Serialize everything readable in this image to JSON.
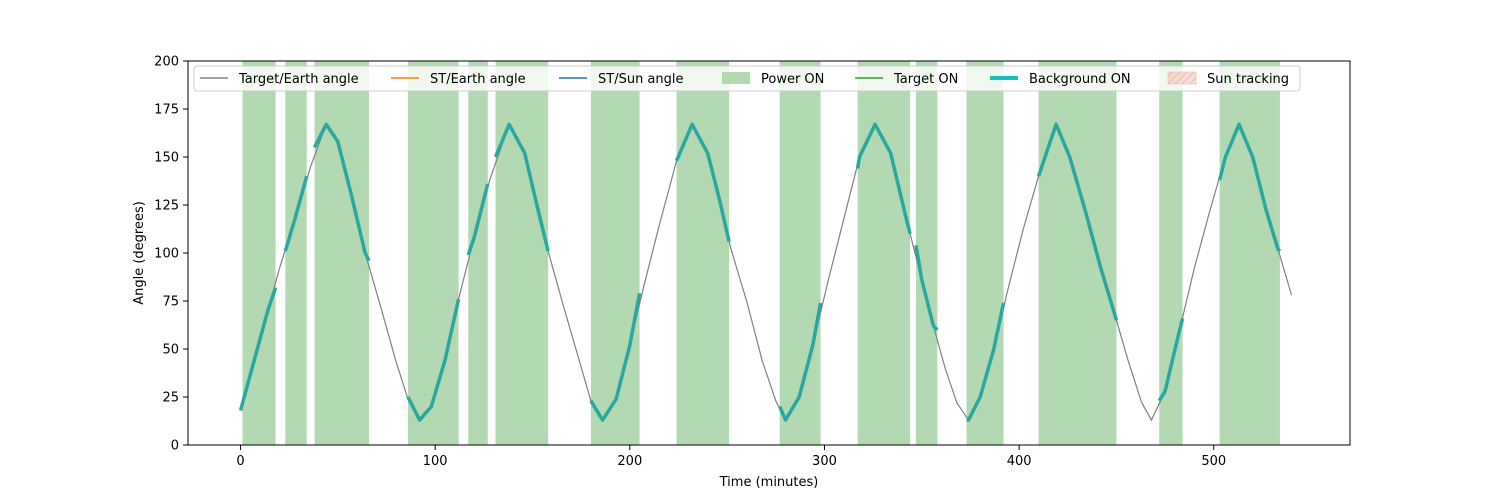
{
  "chart_data": {
    "type": "line",
    "xlabel": "Time (minutes)",
    "ylabel": "Angle (degrees)",
    "xlim": [
      -27,
      570
    ],
    "ylim": [
      0,
      200
    ],
    "xticks": [
      0,
      100,
      200,
      300,
      400,
      500
    ],
    "yticks": [
      0,
      25,
      50,
      75,
      100,
      125,
      150,
      175,
      200
    ],
    "grid": false,
    "legend_position": "top, single row",
    "legend": [
      {
        "label": "Target/Earth angle",
        "kind": "line",
        "color": "#808080"
      },
      {
        "label": "ST/Earth angle",
        "kind": "line",
        "color": "#ff7f0e"
      },
      {
        "label": "ST/Sun angle",
        "kind": "line",
        "color": "#1f77b4"
      },
      {
        "label": "Power ON",
        "kind": "patch",
        "color": "#b3d9b3"
      },
      {
        "label": "Target ON",
        "kind": "line",
        "color": "#2ca02c"
      },
      {
        "label": "Background ON",
        "kind": "thick-line",
        "color": "#17bebb"
      },
      {
        "label": "Sun tracking",
        "kind": "hatched-patch",
        "color": "#f4c2b8"
      }
    ],
    "target_earth_angle": {
      "color": "#808080",
      "points": [
        [
          0,
          18
        ],
        [
          7,
          44
        ],
        [
          14,
          70
        ],
        [
          20,
          92
        ],
        [
          28,
          118
        ],
        [
          36,
          145
        ],
        [
          44,
          167
        ],
        [
          50,
          158
        ],
        [
          57,
          130
        ],
        [
          64,
          100
        ],
        [
          72,
          72
        ],
        [
          80,
          43
        ],
        [
          86,
          24
        ],
        [
          92,
          13
        ],
        [
          98,
          20
        ],
        [
          105,
          44
        ],
        [
          112,
          76
        ],
        [
          120,
          108
        ],
        [
          128,
          138
        ],
        [
          138,
          167
        ],
        [
          146,
          152
        ],
        [
          152,
          126
        ],
        [
          158,
          101
        ],
        [
          166,
          72
        ],
        [
          174,
          44
        ],
        [
          180,
          23
        ],
        [
          186,
          13
        ],
        [
          193,
          24
        ],
        [
          200,
          52
        ],
        [
          207,
          82
        ],
        [
          215,
          114
        ],
        [
          224,
          148
        ],
        [
          232,
          167
        ],
        [
          240,
          152
        ],
        [
          246,
          128
        ],
        [
          252,
          102
        ],
        [
          260,
          75
        ],
        [
          268,
          44
        ],
        [
          275,
          23
        ],
        [
          280,
          13
        ],
        [
          287,
          25
        ],
        [
          294,
          52
        ],
        [
          302,
          86
        ],
        [
          310,
          118
        ],
        [
          318,
          150
        ],
        [
          326,
          167
        ],
        [
          334,
          152
        ],
        [
          342,
          118
        ],
        [
          350,
          86
        ],
        [
          356,
          62
        ],
        [
          362,
          40
        ],
        [
          368,
          22
        ],
        [
          374,
          13
        ],
        [
          380,
          25
        ],
        [
          387,
          50
        ],
        [
          394,
          80
        ],
        [
          402,
          112
        ],
        [
          410,
          140
        ],
        [
          419,
          167
        ],
        [
          426,
          150
        ],
        [
          434,
          122
        ],
        [
          442,
          92
        ],
        [
          450,
          65
        ],
        [
          456,
          44
        ],
        [
          463,
          22
        ],
        [
          468,
          13
        ],
        [
          475,
          28
        ],
        [
          482,
          58
        ],
        [
          490,
          92
        ],
        [
          498,
          122
        ],
        [
          506,
          150
        ],
        [
          513,
          167
        ],
        [
          520,
          150
        ],
        [
          527,
          122
        ],
        [
          533,
          102
        ],
        [
          540,
          78
        ]
      ]
    },
    "power_on_intervals": [
      [
        1,
        18
      ],
      [
        23,
        34
      ],
      [
        38,
        66
      ],
      [
        86,
        112
      ],
      [
        117,
        127
      ],
      [
        131,
        158
      ],
      [
        180,
        205
      ],
      [
        224,
        251
      ],
      [
        277,
        298
      ],
      [
        317,
        344
      ],
      [
        347,
        358
      ],
      [
        373,
        392
      ],
      [
        410,
        450
      ],
      [
        472,
        484
      ],
      [
        503,
        534
      ]
    ],
    "background_on": {
      "color": "#2aa8a0",
      "segments": [
        [
          [
            0,
            18
          ],
          [
            7,
            44
          ],
          [
            14,
            70
          ],
          [
            18,
            82
          ]
        ],
        [
          [
            23,
            101
          ],
          [
            28,
            118
          ],
          [
            34,
            140
          ]
        ],
        [
          [
            38,
            155
          ],
          [
            44,
            167
          ],
          [
            50,
            158
          ],
          [
            57,
            130
          ],
          [
            64,
            100
          ],
          [
            66,
            96
          ]
        ],
        [
          [
            86,
            25
          ],
          [
            92,
            13
          ],
          [
            98,
            20
          ],
          [
            105,
            44
          ],
          [
            112,
            76
          ]
        ],
        [
          [
            117,
            99
          ],
          [
            120,
            108
          ],
          [
            127,
            136
          ]
        ],
        [
          [
            131,
            150
          ],
          [
            138,
            167
          ],
          [
            146,
            152
          ],
          [
            152,
            126
          ],
          [
            158,
            101
          ]
        ],
        [
          [
            180,
            23
          ],
          [
            186,
            13
          ],
          [
            193,
            24
          ],
          [
            200,
            52
          ],
          [
            205,
            79
          ]
        ],
        [
          [
            224,
            148
          ],
          [
            232,
            167
          ],
          [
            240,
            152
          ],
          [
            246,
            128
          ],
          [
            251,
            106
          ]
        ],
        [
          [
            277,
            20
          ],
          [
            280,
            13
          ],
          [
            287,
            25
          ],
          [
            294,
            52
          ],
          [
            298,
            74
          ]
        ],
        [
          [
            317,
            144
          ],
          [
            318,
            150
          ],
          [
            326,
            167
          ],
          [
            334,
            152
          ],
          [
            342,
            118
          ],
          [
            344,
            110
          ]
        ],
        [
          [
            347,
            104
          ],
          [
            350,
            86
          ],
          [
            356,
            62
          ],
          [
            358,
            60
          ]
        ],
        [
          [
            373,
            13
          ],
          [
            374,
            13
          ],
          [
            380,
            25
          ],
          [
            387,
            50
          ],
          [
            392,
            74
          ]
        ],
        [
          [
            410,
            140
          ],
          [
            419,
            167
          ],
          [
            426,
            150
          ],
          [
            434,
            122
          ],
          [
            442,
            92
          ],
          [
            450,
            65
          ]
        ],
        [
          [
            472,
            23
          ],
          [
            475,
            28
          ],
          [
            482,
            58
          ],
          [
            484,
            66
          ]
        ],
        [
          [
            503,
            138
          ],
          [
            506,
            150
          ],
          [
            513,
            167
          ],
          [
            520,
            150
          ],
          [
            527,
            122
          ],
          [
            533,
            102
          ],
          [
            534,
            101
          ]
        ]
      ]
    }
  }
}
